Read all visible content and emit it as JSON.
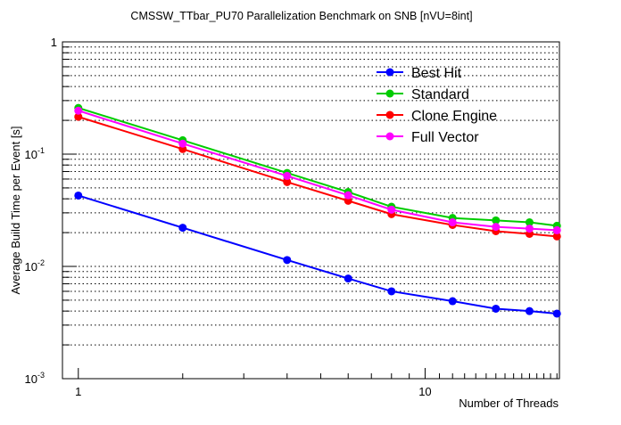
{
  "chart_data": {
    "type": "line",
    "title": "CMSSW_TTbar_PU70 Parallelization Benchmark on SNB [nVU=8int]",
    "xlabel": "Number of Threads",
    "ylabel": "Average Build Time per Event [s]",
    "xscale": "log",
    "yscale": "log",
    "xlim": [
      0.9,
      24.4
    ],
    "ylim": [
      0.001,
      1
    ],
    "x_tick_labels": [
      "1",
      "10"
    ],
    "y_tick_labels": [
      "10^-3",
      "10^-2",
      "10^-1",
      "1"
    ],
    "grid": "y-dotted",
    "legend_position": "top-right",
    "x": [
      1,
      2,
      4,
      6,
      8,
      12,
      16,
      20,
      24
    ],
    "series": [
      {
        "name": "Best Hit",
        "color": "#0000ff",
        "values": [
          0.0428,
          0.0221,
          0.0114,
          0.0078,
          0.006,
          0.0049,
          0.0042,
          0.004,
          0.0038
        ]
      },
      {
        "name": "Standard",
        "color": "#00cc00",
        "values": [
          0.258,
          0.133,
          0.068,
          0.046,
          0.034,
          0.027,
          0.0257,
          0.0247,
          0.023
        ]
      },
      {
        "name": "Clone Engine",
        "color": "#ff0000",
        "values": [
          0.215,
          0.111,
          0.0564,
          0.0384,
          0.0292,
          0.0234,
          0.0206,
          0.0195,
          0.0185
        ]
      },
      {
        "name": "Full Vector",
        "color": "#ff00ff",
        "values": [
          0.244,
          0.124,
          0.064,
          0.043,
          0.032,
          0.0247,
          0.0225,
          0.0217,
          0.021
        ]
      }
    ]
  }
}
